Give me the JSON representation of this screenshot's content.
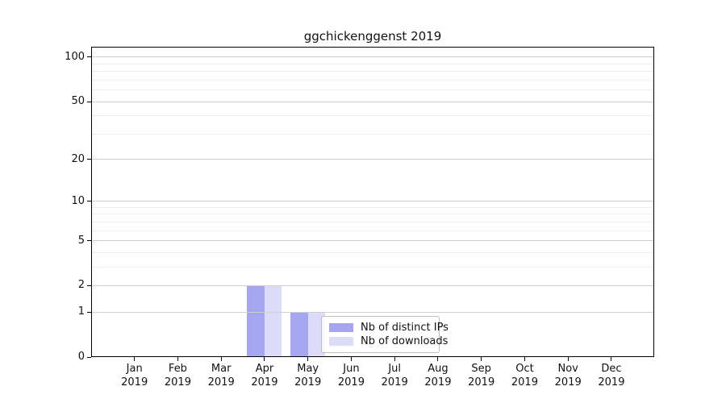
{
  "figure": {
    "background": "#ffffff"
  },
  "chart_data": {
    "type": "bar",
    "title": "ggchickenggenst 2019",
    "categories": [
      "Jan",
      "Feb",
      "Mar",
      "Apr",
      "May",
      "Jun",
      "Jul",
      "Aug",
      "Sep",
      "Oct",
      "Nov",
      "Dec"
    ],
    "category_year": "2019",
    "series": [
      {
        "name": "Nb of distinct IPs",
        "color": "#a5a5f0",
        "values": [
          0,
          0,
          0,
          2,
          1,
          0,
          0,
          0,
          0,
          0,
          0,
          0
        ]
      },
      {
        "name": "Nb of downloads",
        "color": "#dcdcf8",
        "values": [
          0,
          0,
          0,
          2,
          1,
          0,
          0,
          0,
          0,
          0,
          0,
          0
        ]
      }
    ],
    "xlabel": "",
    "ylabel": "",
    "y_axis": {
      "scale": "log1p",
      "major_ticks": [
        0,
        1,
        2,
        5,
        10,
        20,
        50,
        100
      ],
      "minor_ticks": [
        3,
        4,
        6,
        7,
        8,
        9,
        30,
        40,
        60,
        70,
        80,
        90
      ],
      "ylim": [
        0,
        117.6
      ]
    },
    "grid": {
      "enabled": true,
      "major_color": "#cfcfcf",
      "minor_color": "#ececec"
    },
    "legend": {
      "position": "lower-center",
      "entries": [
        "Nb of distinct IPs",
        "Nb of downloads"
      ]
    }
  }
}
